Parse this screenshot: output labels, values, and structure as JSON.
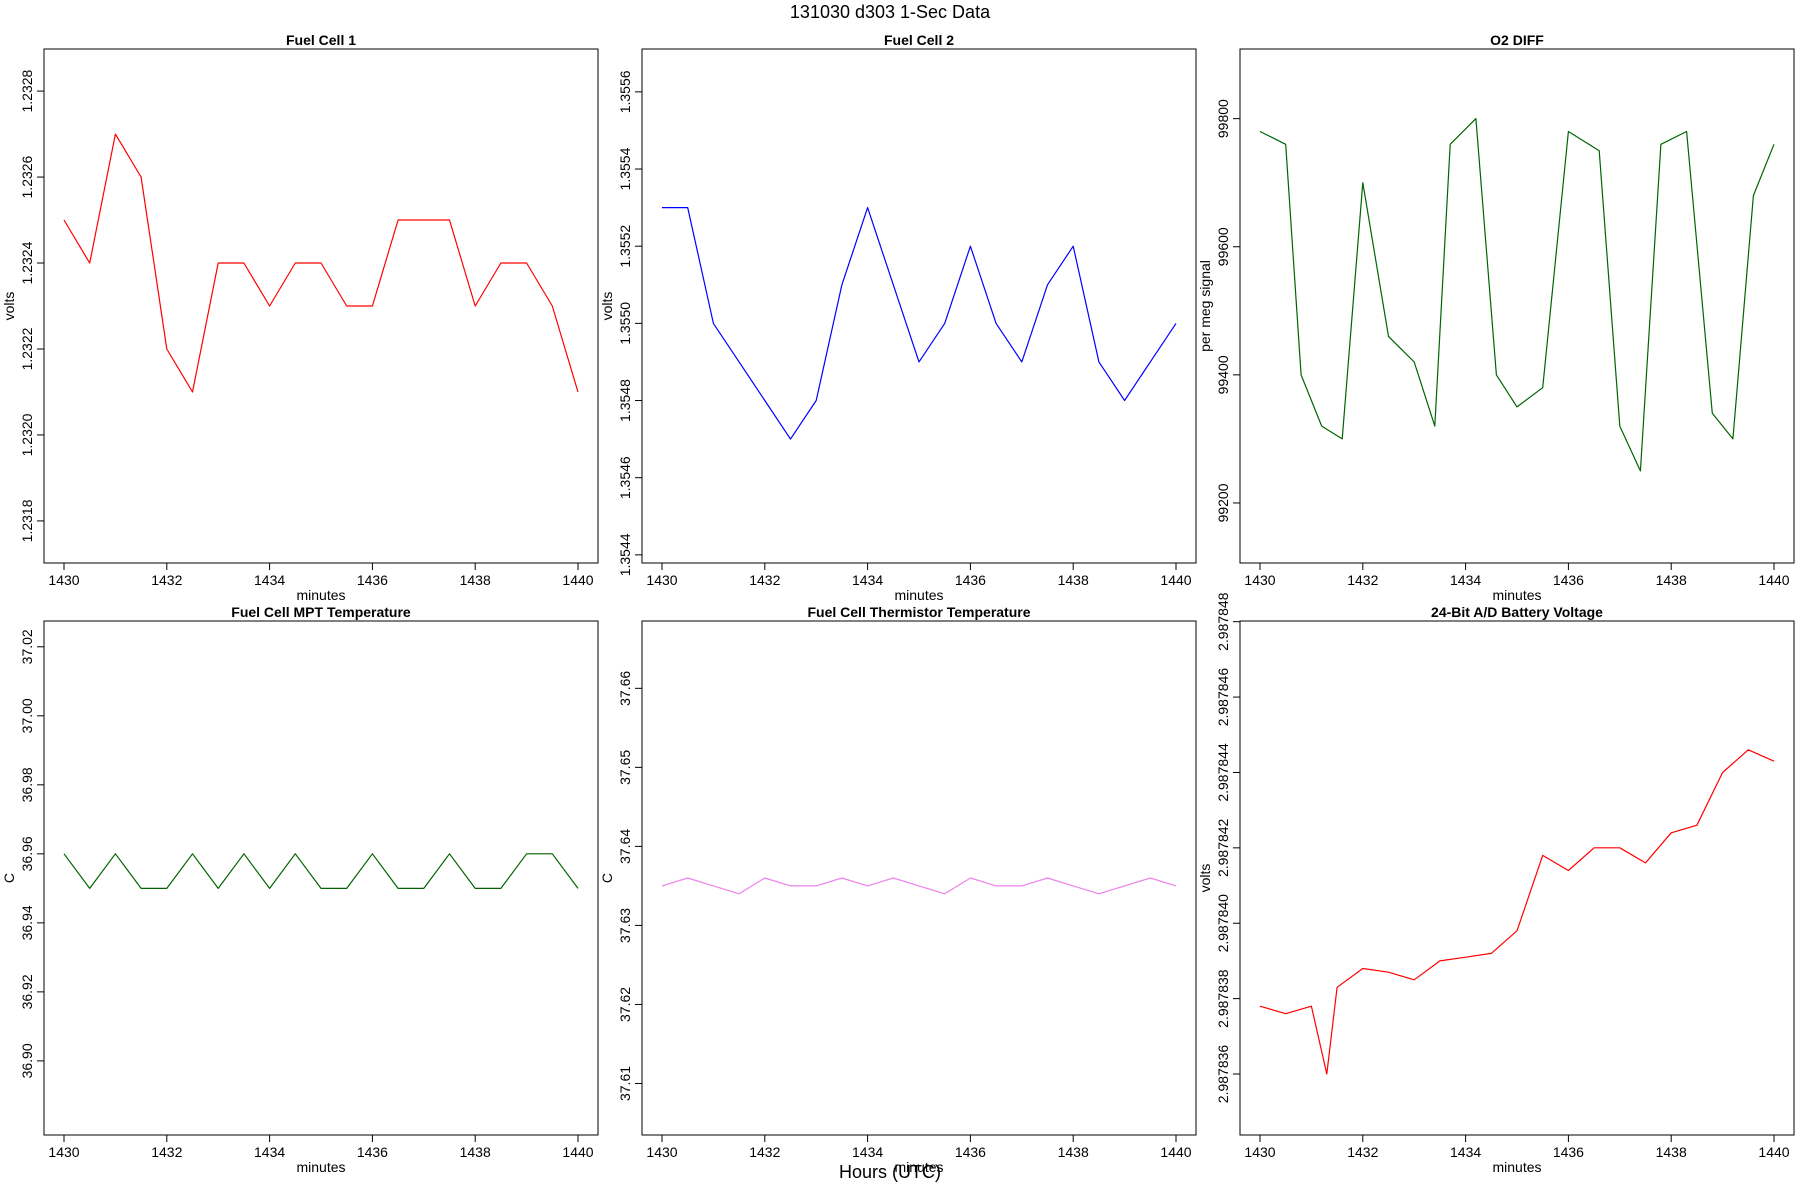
{
  "figure": {
    "title": "131030   d303   1-Sec Data",
    "xlabel": "Hours (UTC)"
  },
  "chart_data": [
    {
      "type": "line",
      "title": "Fuel Cell 1",
      "xlabel": "minutes",
      "ylabel": "volts",
      "color": "#ff0000",
      "xlim": [
        1430,
        1440
      ],
      "ylim": [
        1.23173,
        1.23287
      ],
      "xticks": [
        "1430",
        "1432",
        "1434",
        "1436",
        "1438",
        "1440"
      ],
      "yticks": [
        "1.2318",
        "1.2320",
        "1.2322",
        "1.2324",
        "1.2326",
        "1.2328"
      ],
      "x": [
        1430,
        1430.5,
        1431,
        1431.5,
        1432,
        1432.5,
        1433,
        1433.5,
        1434,
        1434.5,
        1435,
        1435.5,
        1436,
        1436.5,
        1437,
        1437.5,
        1438,
        1438.5,
        1439,
        1439.5,
        1440
      ],
      "y": [
        1.2325,
        1.2324,
        1.2327,
        1.2326,
        1.2322,
        1.2321,
        1.2324,
        1.2324,
        1.2323,
        1.2324,
        1.2324,
        1.2323,
        1.2323,
        1.2325,
        1.2325,
        1.2325,
        1.2323,
        1.2324,
        1.2324,
        1.2323,
        1.2321
      ]
    },
    {
      "type": "line",
      "title": "Fuel Cell 2",
      "xlabel": "minutes",
      "ylabel": "volts",
      "color": "#0000ff",
      "xlim": [
        1430,
        1440
      ],
      "ylim": [
        1.35441,
        1.35568
      ],
      "xticks": [
        "1430",
        "1432",
        "1434",
        "1436",
        "1438",
        "1440"
      ],
      "yticks": [
        "1.3544",
        "1.3546",
        "1.3548",
        "1.3550",
        "1.3552",
        "1.3554",
        "1.3556"
      ],
      "x": [
        1430,
        1430.5,
        1431,
        1431.5,
        1432,
        1432.5,
        1433,
        1433.5,
        1434,
        1434.5,
        1435,
        1435.5,
        1436,
        1436.5,
        1437,
        1437.5,
        1438,
        1438.5,
        1439,
        1439.5,
        1440
      ],
      "y": [
        1.3553,
        1.3553,
        1.355,
        1.3549,
        1.3548,
        1.3547,
        1.3548,
        1.3551,
        1.3553,
        1.3551,
        1.3549,
        1.355,
        1.3552,
        1.355,
        1.3549,
        1.3551,
        1.3552,
        1.3549,
        1.3548,
        1.3549,
        1.355
      ]
    },
    {
      "type": "line",
      "title": "O2 DIFF",
      "xlabel": "minutes",
      "ylabel": "per meg signal",
      "color": "#006400",
      "xlim": [
        1430,
        1440
      ],
      "ylim": [
        99125,
        99890
      ],
      "xticks": [
        "1430",
        "1432",
        "1434",
        "1436",
        "1438",
        "1440"
      ],
      "yticks": [
        "99200",
        "99400",
        "99600",
        "99800"
      ],
      "x": [
        1430,
        1430.5,
        1430.8,
        1431.2,
        1431.6,
        1432,
        1432.5,
        1433,
        1433.4,
        1433.7,
        1434.2,
        1434.6,
        1435,
        1435.5,
        1436,
        1436.6,
        1437,
        1437.4,
        1437.8,
        1438.3,
        1438.8,
        1439.2,
        1439.6,
        1440
      ],
      "y": [
        99780,
        99760,
        99400,
        99320,
        99300,
        99700,
        99460,
        99420,
        99320,
        99760,
        99800,
        99400,
        99350,
        99380,
        99780,
        99750,
        99320,
        99250,
        99760,
        99780,
        99340,
        99300,
        99680,
        99760
      ]
    },
    {
      "type": "line",
      "title": "Fuel Cell MPT Temperature",
      "xlabel": "minutes",
      "ylabel": "C",
      "color": "#006400",
      "xlim": [
        1430,
        1440
      ],
      "ylim": [
        36.882,
        37.024
      ],
      "xticks": [
        "1430",
        "1432",
        "1434",
        "1436",
        "1438",
        "1440"
      ],
      "yticks": [
        "36.90",
        "36.92",
        "36.94",
        "36.96",
        "36.98",
        "37.00",
        "37.02"
      ],
      "x": [
        1430,
        1430.5,
        1431,
        1431.5,
        1432,
        1432.5,
        1433,
        1433.5,
        1434,
        1434.5,
        1435,
        1435.5,
        1436,
        1436.5,
        1437,
        1437.5,
        1438,
        1438.5,
        1439,
        1439.5,
        1440
      ],
      "y": [
        36.96,
        36.95,
        36.96,
        36.95,
        36.95,
        36.96,
        36.95,
        36.96,
        36.95,
        36.96,
        36.95,
        36.95,
        36.96,
        36.95,
        36.95,
        36.96,
        36.95,
        36.95,
        36.96,
        36.96,
        36.95
      ]
    },
    {
      "type": "line",
      "title": "Fuel Cell Thermistor Temperature",
      "xlabel": "minutes",
      "ylabel": "C",
      "color": "#ee82ee",
      "xlim": [
        1430,
        1440
      ],
      "ylim": [
        37.605,
        37.667
      ],
      "xticks": [
        "1430",
        "1432",
        "1434",
        "1436",
        "1438",
        "1440"
      ],
      "yticks": [
        "37.61",
        "37.62",
        "37.63",
        "37.64",
        "37.65",
        "37.66"
      ],
      "x": [
        1430,
        1430.5,
        1431,
        1431.5,
        1432,
        1432.5,
        1433,
        1433.5,
        1434,
        1434.5,
        1435,
        1435.5,
        1436,
        1436.5,
        1437,
        1437.5,
        1438,
        1438.5,
        1439,
        1439.5,
        1440
      ],
      "y": [
        37.635,
        37.636,
        37.635,
        37.634,
        37.636,
        37.635,
        37.635,
        37.636,
        37.635,
        37.636,
        37.635,
        37.634,
        37.636,
        37.635,
        37.635,
        37.636,
        37.635,
        37.634,
        37.635,
        37.636,
        37.635
      ]
    },
    {
      "type": "line",
      "title": "24-Bit A/D Battery Voltage",
      "xlabel": "minutes",
      "ylabel": "volts",
      "color": "#ff0000",
      "xlim": [
        1430,
        1440
      ],
      "ylim": [
        2.9878347,
        2.9878477
      ],
      "xticks": [
        "1430",
        "1432",
        "1434",
        "1436",
        "1438",
        "1440"
      ],
      "yticks": [
        "2.987836",
        "2.987838",
        "2.987840",
        "2.987842",
        "2.987844",
        "2.987846",
        "2.987848"
      ],
      "x": [
        1430,
        1430.5,
        1431,
        1431.3,
        1431.5,
        1432,
        1432.5,
        1433,
        1433.5,
        1434,
        1434.5,
        1435,
        1435.5,
        1436,
        1436.5,
        1437,
        1437.5,
        1438,
        1438.5,
        1439,
        1439.5,
        1440
      ],
      "y": [
        2.9878378,
        2.9878376,
        2.9878378,
        2.987836,
        2.9878383,
        2.9878388,
        2.9878387,
        2.9878385,
        2.987839,
        2.9878391,
        2.9878392,
        2.9878398,
        2.9878418,
        2.9878414,
        2.987842,
        2.987842,
        2.9878416,
        2.9878424,
        2.9878426,
        2.987844,
        2.9878446,
        2.9878443
      ]
    }
  ]
}
